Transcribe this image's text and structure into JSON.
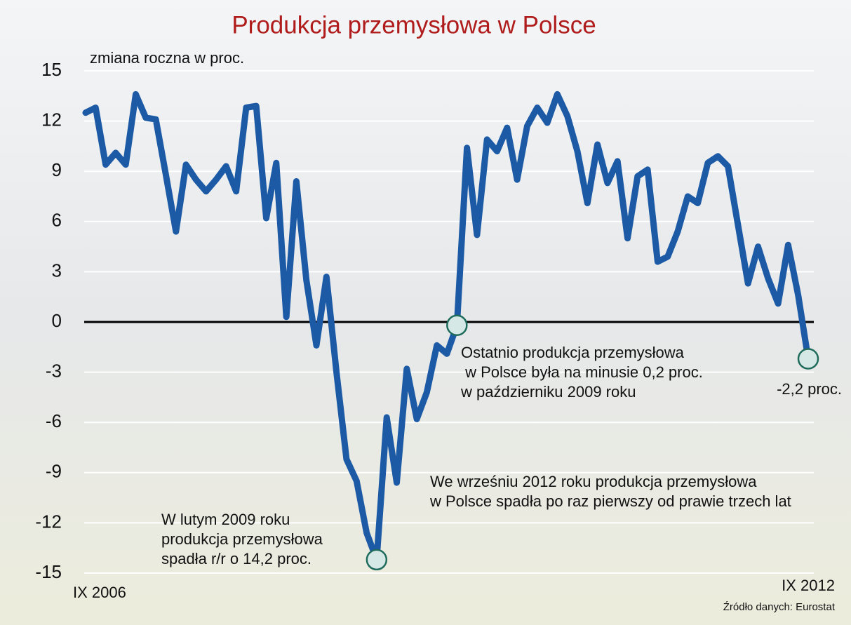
{
  "chart_data": {
    "type": "line",
    "title": "Produkcja przemysłowa w Polsce",
    "subtitle": "zmiana roczna w proc.",
    "source": "Źródło danych: Eurostat",
    "categories": [
      "IX 2006",
      null,
      null,
      null,
      null,
      null,
      null,
      null,
      null,
      null,
      null,
      null,
      null,
      null,
      null,
      null,
      null,
      null,
      null,
      null,
      null,
      null,
      null,
      null,
      null,
      null,
      null,
      null,
      null,
      null,
      null,
      null,
      null,
      null,
      null,
      null,
      null,
      null,
      null,
      null,
      null,
      null,
      null,
      null,
      null,
      null,
      null,
      null,
      null,
      null,
      null,
      null,
      null,
      null,
      null,
      null,
      null,
      null,
      null,
      null,
      null,
      null,
      null,
      null,
      null,
      null,
      null,
      null,
      null,
      null,
      null,
      null,
      "IX 2012"
    ],
    "series": [
      {
        "name": "Produkcja przemysłowa",
        "color": "#1c5aa6",
        "values": [
          12.5,
          12.8,
          9.4,
          10.1,
          9.4,
          13.6,
          12.2,
          12.1,
          8.8,
          5.4,
          9.4,
          8.5,
          7.8,
          8.5,
          9.3,
          7.8,
          12.8,
          12.9,
          6.2,
          9.5,
          0.3,
          8.4,
          2.5,
          -1.4,
          2.7,
          -3.0,
          -8.2,
          -9.5,
          -12.6,
          -14.2,
          -5.7,
          -9.6,
          -2.8,
          -5.8,
          -4.2,
          -1.4,
          -1.9,
          -0.2,
          10.4,
          5.2,
          10.9,
          10.2,
          11.6,
          8.5,
          11.7,
          12.8,
          11.9,
          13.6,
          12.3,
          10.2,
          7.1,
          10.6,
          8.3,
          9.6,
          5.0,
          8.7,
          9.1,
          3.6,
          3.9,
          5.4,
          7.5,
          7.1,
          9.5,
          9.9,
          9.3,
          5.8,
          2.3,
          4.5,
          2.6,
          1.1,
          4.6,
          1.6,
          -2.2
        ]
      }
    ],
    "ylim": [
      -15,
      15
    ],
    "yticks": [
      15,
      12,
      9,
      6,
      3,
      0,
      -3,
      -6,
      -9,
      -12,
      -15
    ],
    "grid": true,
    "annotations": [
      {
        "lines": [
          "W lutym 2009 roku",
          "produkcja przemysłowa",
          "spadła r/r o 14,2 proc."
        ]
      },
      {
        "lines": [
          "Ostatnio produkcja przemysłowa",
          " w Polsce była na minusie 0,2 proc.",
          "w październiku 2009 roku"
        ]
      },
      {
        "lines": [
          "-2,2 proc."
        ]
      },
      {
        "lines": [
          "We wrześniu 2012 roku produkcja przemysłowa",
          "w Polsce spadła po raz pierwszy od prawie trzech lat"
        ]
      }
    ]
  }
}
